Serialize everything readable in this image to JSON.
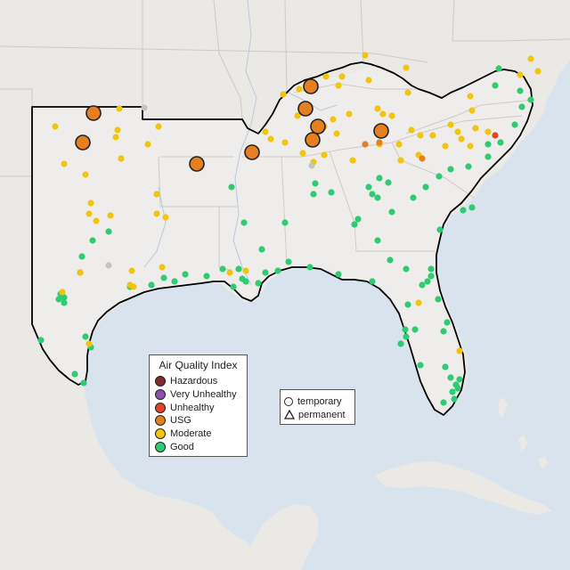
{
  "legend": {
    "title": "Air Quality Index",
    "categories": [
      {
        "label": "Hazardous",
        "color": "#7e2e2a"
      },
      {
        "label": "Very Unhealthy",
        "color": "#8f4fad"
      },
      {
        "label": "Unhealthy",
        "color": "#e0452b"
      },
      {
        "label": "USG",
        "color": "#e67e22"
      },
      {
        "label": "Moderate",
        "color": "#f1c40f"
      },
      {
        "label": "Good",
        "color": "#2ecc71"
      }
    ]
  },
  "monitor_types": {
    "temporary": "temporary",
    "permanent": "permanent"
  },
  "colors": {
    "water": "#d8e3ee",
    "land": "#eceae6",
    "focus_land": "#efedeb",
    "border": "#000000",
    "state_line": "#cfcac4",
    "no_data": "#c4c4c4"
  }
}
